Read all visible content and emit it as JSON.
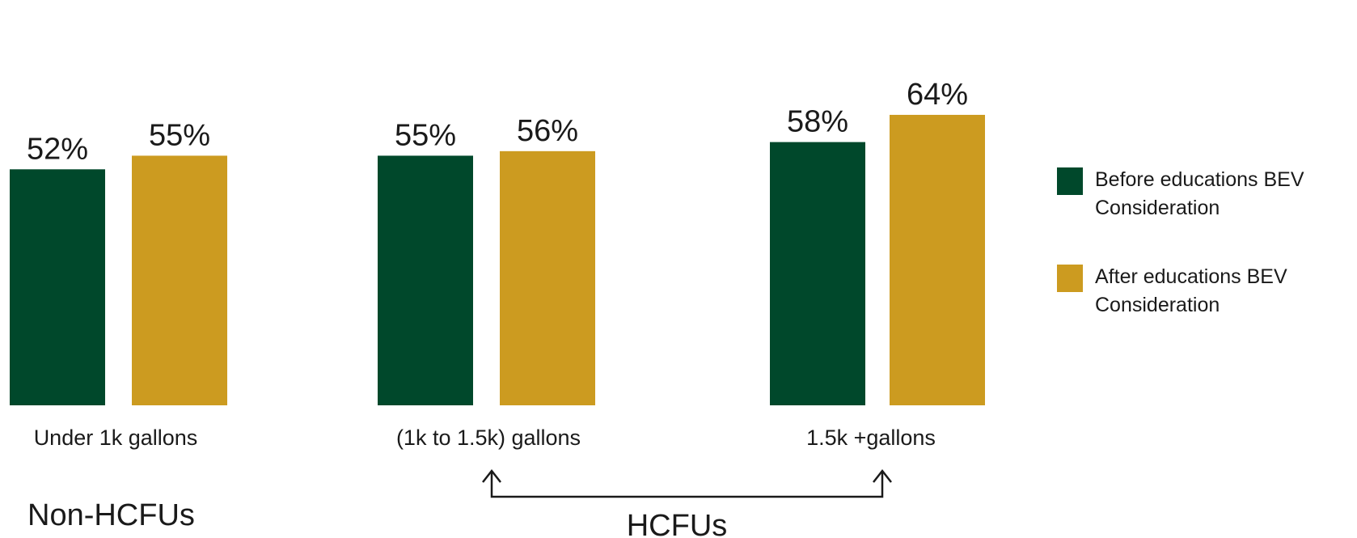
{
  "chart_data": {
    "type": "bar",
    "title": "",
    "xlabel": "",
    "ylabel": "",
    "categories": [
      "Under 1k gallons",
      "(1k to 1.5k) gallons",
      "1.5k +gallons"
    ],
    "series": [
      {
        "name": "Before educations BEV Consideration",
        "values": [
          52,
          55,
          58
        ],
        "labels": [
          "52%",
          "55%",
          "58%"
        ],
        "color": "#00482B"
      },
      {
        "name": "After educations BEV Consideration",
        "values": [
          55,
          56,
          64
        ],
        "labels": [
          "55%",
          "56%",
          "64%"
        ],
        "color": "#CC9B20"
      }
    ],
    "groups": [
      {
        "label": "Non-HCFUs",
        "categories": [
          "Under 1k gallons"
        ]
      },
      {
        "label": "HCFUs",
        "categories": [
          "(1k to 1.5k) gallons",
          "1.5k +gallons"
        ]
      }
    ],
    "legend": {
      "position": "right",
      "entries": [
        {
          "line1": "Before educations BEV",
          "line2": "Consideration",
          "color": "#00482B"
        },
        {
          "line1": "After educations BEV",
          "line2": "Consideration",
          "color": "#CC9B20"
        }
      ]
    },
    "grid": false
  }
}
